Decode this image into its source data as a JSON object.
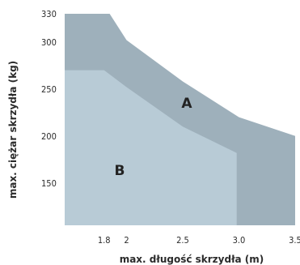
{
  "chart_data": {
    "type": "area",
    "xlabel": "max. długość skrzydła (m)",
    "ylabel": "max. ciężar skrzydła (kg)",
    "x_ticks": [
      "1.8",
      "2",
      "2.5",
      "3.0",
      "3.5"
    ],
    "x_tick_values": [
      1.8,
      2.0,
      2.5,
      3.0,
      3.5
    ],
    "y_ticks": [
      "150",
      "200",
      "250",
      "300",
      "330"
    ],
    "y_tick_values": [
      150,
      200,
      250,
      300,
      330
    ],
    "xlim": [
      1.45,
      3.5
    ],
    "ylim": [
      105,
      330
    ],
    "series": [
      {
        "name": "A",
        "color": "#9eb0bb",
        "x": [
          1.45,
          1.85,
          2.0,
          2.5,
          3.0,
          3.5
        ],
        "y": [
          330,
          330,
          302,
          258,
          220,
          200
        ]
      },
      {
        "name": "B",
        "color": "#b8cbd6",
        "x": [
          1.45,
          1.8,
          2.0,
          2.5,
          2.98,
          2.98
        ],
        "y": [
          270,
          270,
          252,
          210,
          182,
          105
        ]
      }
    ],
    "labels": {
      "a": "A",
      "b": "B"
    },
    "grid": false,
    "legend": "none"
  }
}
